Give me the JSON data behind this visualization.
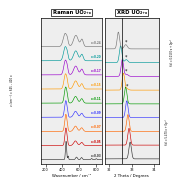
{
  "title_left": "Raman UO₂₊ₓ",
  "title_right": "XRD UO₂₊ₓ",
  "xlabel_left": "Wavenumber / cm⁻¹",
  "xlabel_right": "2 Theta / Degrees",
  "ylabel_left": "ν₁(cm⁻¹) = 645 – 410 x",
  "ylabel_right_bot": "hkl = 5.470·x + 0p¹°",
  "ylabel_right_top": "hkl = 0.0130·x + 0p¹°",
  "x_values": [
    0.03,
    0.05,
    0.07,
    0.09,
    0.11,
    0.15,
    0.17,
    0.2,
    0.24
  ],
  "colors": [
    "#333333",
    "#cc0000",
    "#ff6600",
    "#3333ff",
    "#009900",
    "#ff9900",
    "#9900cc",
    "#009999",
    "#777777"
  ],
  "raman_xlim": [
    150,
    870
  ],
  "raman_xticks": [
    200,
    400,
    600,
    800
  ],
  "xrd_xlim": [
    31.8,
    34.2
  ],
  "xrd_xticks": [
    32,
    33,
    34
  ],
  "background": "#ffffff",
  "panel_bg": "#eeeeee"
}
